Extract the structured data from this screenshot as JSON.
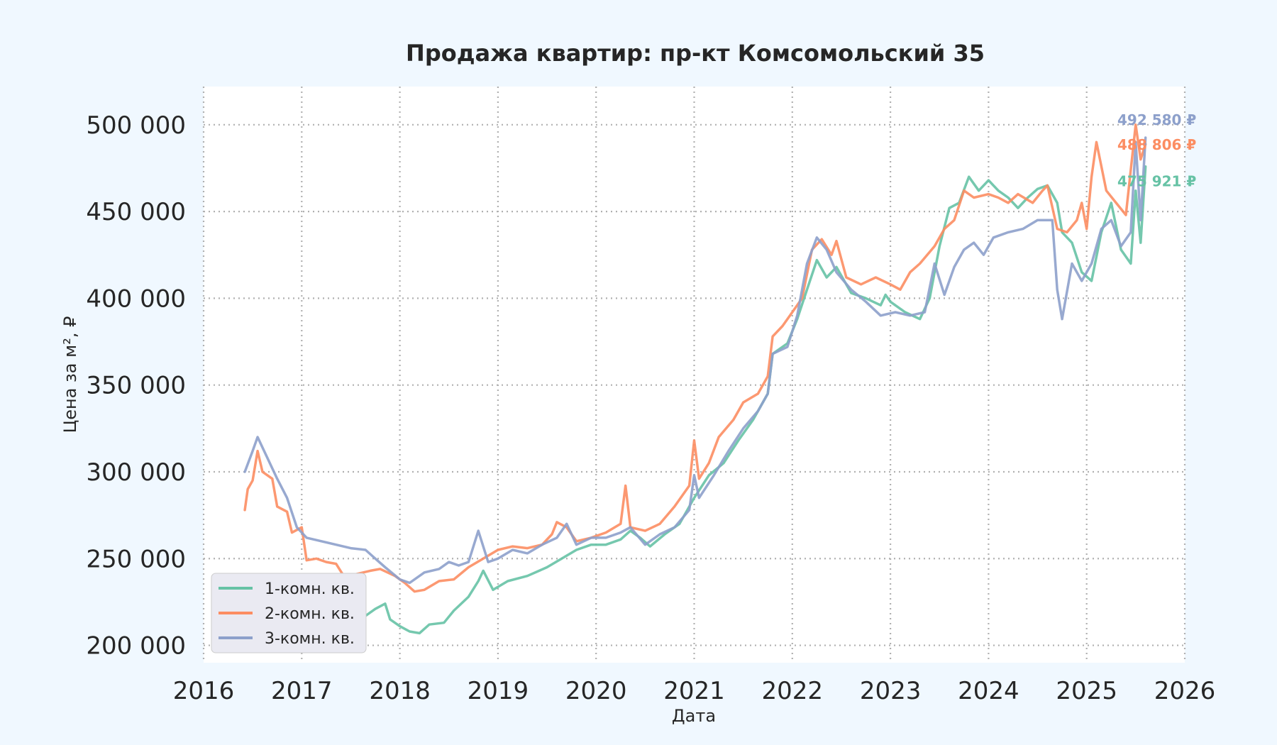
{
  "chart_data": {
    "type": "line",
    "title": "Продажа квартир: пр-кт Комсомольский 35",
    "xlabel": "Дата",
    "ylabel": "Цена за м², ₽",
    "xlim": [
      2016.0,
      2026.0
    ],
    "ylim": [
      190000,
      522000
    ],
    "x_ticks": [
      2016,
      2017,
      2018,
      2019,
      2020,
      2021,
      2022,
      2023,
      2024,
      2025,
      2026
    ],
    "x_tick_labels": [
      "2016",
      "2017",
      "2018",
      "2019",
      "2020",
      "2021",
      "2022",
      "2023",
      "2024",
      "2025",
      "2026"
    ],
    "y_ticks": [
      200000,
      250000,
      300000,
      350000,
      400000,
      450000,
      500000
    ],
    "y_tick_labels": [
      "200 000",
      "250 000",
      "300 000",
      "350 000",
      "400 000",
      "450 000",
      "500 000"
    ],
    "grid": true,
    "legend": "lower-left",
    "series": [
      {
        "name": "1-комн. кв.",
        "color": "#66c2a5",
        "end_label": "475 921 ₽",
        "points": [
          [
            2016.45,
            238000
          ],
          [
            2016.6,
            237000
          ],
          [
            2016.75,
            233000
          ],
          [
            2016.9,
            230000
          ],
          [
            2017.05,
            227000
          ],
          [
            2017.2,
            225000
          ],
          [
            2017.35,
            221000
          ],
          [
            2017.5,
            219000
          ],
          [
            2017.65,
            217000
          ],
          [
            2017.75,
            221000
          ],
          [
            2017.85,
            224000
          ],
          [
            2017.9,
            215000
          ],
          [
            2018.0,
            211000
          ],
          [
            2018.1,
            208000
          ],
          [
            2018.2,
            207000
          ],
          [
            2018.3,
            212000
          ],
          [
            2018.45,
            213000
          ],
          [
            2018.55,
            220000
          ],
          [
            2018.7,
            228000
          ],
          [
            2018.8,
            237000
          ],
          [
            2018.85,
            243000
          ],
          [
            2018.95,
            232000
          ],
          [
            2019.1,
            237000
          ],
          [
            2019.3,
            240000
          ],
          [
            2019.5,
            245000
          ],
          [
            2019.65,
            250000
          ],
          [
            2019.8,
            255000
          ],
          [
            2019.95,
            258000
          ],
          [
            2020.1,
            258000
          ],
          [
            2020.25,
            261000
          ],
          [
            2020.35,
            266000
          ],
          [
            2020.45,
            262000
          ],
          [
            2020.55,
            257000
          ],
          [
            2020.7,
            264000
          ],
          [
            2020.85,
            270000
          ],
          [
            2021.0,
            285000
          ],
          [
            2021.15,
            298000
          ],
          [
            2021.3,
            305000
          ],
          [
            2021.45,
            318000
          ],
          [
            2021.6,
            330000
          ],
          [
            2021.75,
            345000
          ],
          [
            2021.8,
            368000
          ],
          [
            2021.95,
            374000
          ],
          [
            2022.05,
            388000
          ],
          [
            2022.15,
            405000
          ],
          [
            2022.25,
            422000
          ],
          [
            2022.35,
            412000
          ],
          [
            2022.45,
            418000
          ],
          [
            2022.6,
            403000
          ],
          [
            2022.75,
            400000
          ],
          [
            2022.9,
            396000
          ],
          [
            2022.95,
            402000
          ],
          [
            2023.0,
            398000
          ],
          [
            2023.15,
            392000
          ],
          [
            2023.3,
            388000
          ],
          [
            2023.4,
            400000
          ],
          [
            2023.5,
            430000
          ],
          [
            2023.6,
            452000
          ],
          [
            2023.7,
            455000
          ],
          [
            2023.8,
            470000
          ],
          [
            2023.9,
            462000
          ],
          [
            2024.0,
            468000
          ],
          [
            2024.1,
            462000
          ],
          [
            2024.2,
            458000
          ],
          [
            2024.3,
            452000
          ],
          [
            2024.4,
            458000
          ],
          [
            2024.5,
            463000
          ],
          [
            2024.6,
            465000
          ],
          [
            2024.7,
            455000
          ],
          [
            2024.75,
            438000
          ],
          [
            2024.85,
            432000
          ],
          [
            2024.95,
            415000
          ],
          [
            2025.05,
            410000
          ],
          [
            2025.15,
            438000
          ],
          [
            2025.25,
            455000
          ],
          [
            2025.35,
            428000
          ],
          [
            2025.45,
            420000
          ],
          [
            2025.5,
            462000
          ],
          [
            2025.55,
            432000
          ],
          [
            2025.6,
            475921
          ]
        ]
      },
      {
        "name": "2-комн. кв.",
        "color": "#fc8d62",
        "end_label": "488 806 ₽",
        "points": [
          [
            2016.42,
            278000
          ],
          [
            2016.45,
            290000
          ],
          [
            2016.5,
            295000
          ],
          [
            2016.55,
            312000
          ],
          [
            2016.6,
            300000
          ],
          [
            2016.7,
            296000
          ],
          [
            2016.75,
            280000
          ],
          [
            2016.85,
            277000
          ],
          [
            2016.9,
            265000
          ],
          [
            2017.0,
            268000
          ],
          [
            2017.05,
            249000
          ],
          [
            2017.15,
            250000
          ],
          [
            2017.25,
            248000
          ],
          [
            2017.35,
            247000
          ],
          [
            2017.45,
            238000
          ],
          [
            2017.55,
            241000
          ],
          [
            2017.7,
            243000
          ],
          [
            2017.8,
            244000
          ],
          [
            2017.95,
            240000
          ],
          [
            2018.05,
            236000
          ],
          [
            2018.15,
            231000
          ],
          [
            2018.25,
            232000
          ],
          [
            2018.4,
            237000
          ],
          [
            2018.55,
            238000
          ],
          [
            2018.7,
            245000
          ],
          [
            2018.85,
            250000
          ],
          [
            2019.0,
            255000
          ],
          [
            2019.15,
            257000
          ],
          [
            2019.3,
            256000
          ],
          [
            2019.45,
            258000
          ],
          [
            2019.55,
            264000
          ],
          [
            2019.6,
            271000
          ],
          [
            2019.7,
            268000
          ],
          [
            2019.8,
            260000
          ],
          [
            2019.95,
            262000
          ],
          [
            2020.1,
            265000
          ],
          [
            2020.25,
            270000
          ],
          [
            2020.3,
            292000
          ],
          [
            2020.35,
            268000
          ],
          [
            2020.5,
            266000
          ],
          [
            2020.65,
            270000
          ],
          [
            2020.8,
            280000
          ],
          [
            2020.95,
            292000
          ],
          [
            2021.0,
            318000
          ],
          [
            2021.05,
            296000
          ],
          [
            2021.15,
            305000
          ],
          [
            2021.25,
            320000
          ],
          [
            2021.4,
            330000
          ],
          [
            2021.5,
            340000
          ],
          [
            2021.65,
            345000
          ],
          [
            2021.75,
            355000
          ],
          [
            2021.8,
            378000
          ],
          [
            2021.9,
            384000
          ],
          [
            2022.0,
            392000
          ],
          [
            2022.1,
            400000
          ],
          [
            2022.2,
            428000
          ],
          [
            2022.3,
            434000
          ],
          [
            2022.4,
            425000
          ],
          [
            2022.45,
            433000
          ],
          [
            2022.55,
            412000
          ],
          [
            2022.7,
            408000
          ],
          [
            2022.85,
            412000
          ],
          [
            2023.0,
            408000
          ],
          [
            2023.1,
            405000
          ],
          [
            2023.2,
            415000
          ],
          [
            2023.3,
            420000
          ],
          [
            2023.45,
            430000
          ],
          [
            2023.55,
            440000
          ],
          [
            2023.65,
            445000
          ],
          [
            2023.75,
            462000
          ],
          [
            2023.85,
            458000
          ],
          [
            2024.0,
            460000
          ],
          [
            2024.1,
            458000
          ],
          [
            2024.2,
            455000
          ],
          [
            2024.3,
            460000
          ],
          [
            2024.45,
            455000
          ],
          [
            2024.55,
            462000
          ],
          [
            2024.6,
            465000
          ],
          [
            2024.7,
            440000
          ],
          [
            2024.8,
            438000
          ],
          [
            2024.9,
            445000
          ],
          [
            2024.95,
            455000
          ],
          [
            2025.0,
            440000
          ],
          [
            2025.05,
            470000
          ],
          [
            2025.1,
            490000
          ],
          [
            2025.2,
            462000
          ],
          [
            2025.3,
            455000
          ],
          [
            2025.4,
            448000
          ],
          [
            2025.5,
            500000
          ],
          [
            2025.55,
            480000
          ],
          [
            2025.6,
            488806
          ]
        ]
      },
      {
        "name": "3-комн. кв.",
        "color": "#8da0cb",
        "end_label": "492 580 ₽",
        "points": [
          [
            2016.42,
            300000
          ],
          [
            2016.5,
            312000
          ],
          [
            2016.55,
            320000
          ],
          [
            2016.65,
            308000
          ],
          [
            2016.75,
            296000
          ],
          [
            2016.85,
            285000
          ],
          [
            2016.95,
            268000
          ],
          [
            2017.05,
            262000
          ],
          [
            2017.2,
            260000
          ],
          [
            2017.35,
            258000
          ],
          [
            2017.5,
            256000
          ],
          [
            2017.65,
            255000
          ],
          [
            2017.75,
            250000
          ],
          [
            2017.85,
            245000
          ],
          [
            2018.0,
            238000
          ],
          [
            2018.1,
            236000
          ],
          [
            2018.25,
            242000
          ],
          [
            2018.4,
            244000
          ],
          [
            2018.5,
            248000
          ],
          [
            2018.6,
            246000
          ],
          [
            2018.7,
            248000
          ],
          [
            2018.8,
            266000
          ],
          [
            2018.9,
            248000
          ],
          [
            2019.0,
            250000
          ],
          [
            2019.15,
            255000
          ],
          [
            2019.3,
            253000
          ],
          [
            2019.45,
            258000
          ],
          [
            2019.6,
            262000
          ],
          [
            2019.7,
            270000
          ],
          [
            2019.8,
            258000
          ],
          [
            2019.95,
            262000
          ],
          [
            2020.1,
            262000
          ],
          [
            2020.25,
            265000
          ],
          [
            2020.35,
            268000
          ],
          [
            2020.5,
            258000
          ],
          [
            2020.65,
            264000
          ],
          [
            2020.8,
            268000
          ],
          [
            2020.95,
            278000
          ],
          [
            2021.0,
            298000
          ],
          [
            2021.05,
            285000
          ],
          [
            2021.2,
            298000
          ],
          [
            2021.35,
            312000
          ],
          [
            2021.5,
            325000
          ],
          [
            2021.65,
            335000
          ],
          [
            2021.75,
            345000
          ],
          [
            2021.8,
            368000
          ],
          [
            2021.95,
            372000
          ],
          [
            2022.05,
            390000
          ],
          [
            2022.15,
            420000
          ],
          [
            2022.25,
            435000
          ],
          [
            2022.35,
            428000
          ],
          [
            2022.45,
            415000
          ],
          [
            2022.6,
            405000
          ],
          [
            2022.75,
            398000
          ],
          [
            2022.9,
            390000
          ],
          [
            2023.05,
            392000
          ],
          [
            2023.2,
            390000
          ],
          [
            2023.35,
            392000
          ],
          [
            2023.45,
            420000
          ],
          [
            2023.55,
            402000
          ],
          [
            2023.65,
            418000
          ],
          [
            2023.75,
            428000
          ],
          [
            2023.85,
            432000
          ],
          [
            2023.95,
            425000
          ],
          [
            2024.05,
            435000
          ],
          [
            2024.2,
            438000
          ],
          [
            2024.35,
            440000
          ],
          [
            2024.5,
            445000
          ],
          [
            2024.65,
            445000
          ],
          [
            2024.7,
            405000
          ],
          [
            2024.75,
            388000
          ],
          [
            2024.85,
            420000
          ],
          [
            2024.95,
            410000
          ],
          [
            2025.05,
            420000
          ],
          [
            2025.15,
            440000
          ],
          [
            2025.25,
            445000
          ],
          [
            2025.35,
            430000
          ],
          [
            2025.45,
            438000
          ],
          [
            2025.5,
            490000
          ],
          [
            2025.55,
            445000
          ],
          [
            2025.6,
            492580
          ]
        ]
      }
    ]
  }
}
